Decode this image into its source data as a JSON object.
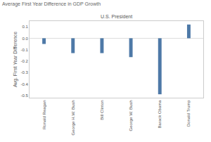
{
  "chart_data": {
    "type": "bar",
    "title": "Average First Year Difference in GDP Growth",
    "xlabel": "U.S. President",
    "ylabel": "Avg. First Year Difference",
    "categories": [
      "Ronald Reagan",
      "George H.W. Bush",
      "Bill Clinton",
      "George W. Bush",
      "Barack Obama",
      "Donald Trump"
    ],
    "values": [
      -0.05,
      -0.13,
      -0.13,
      -0.165,
      -0.49,
      0.12
    ],
    "color": "#4e79a7",
    "ylim": [
      -0.52,
      0.15
    ],
    "yticks": [
      0.1,
      {
        "value": 0,
        "label": "0.0"
      },
      -0.1,
      -0.2,
      -0.3,
      -0.4,
      -0.5
    ],
    "grid": false
  }
}
